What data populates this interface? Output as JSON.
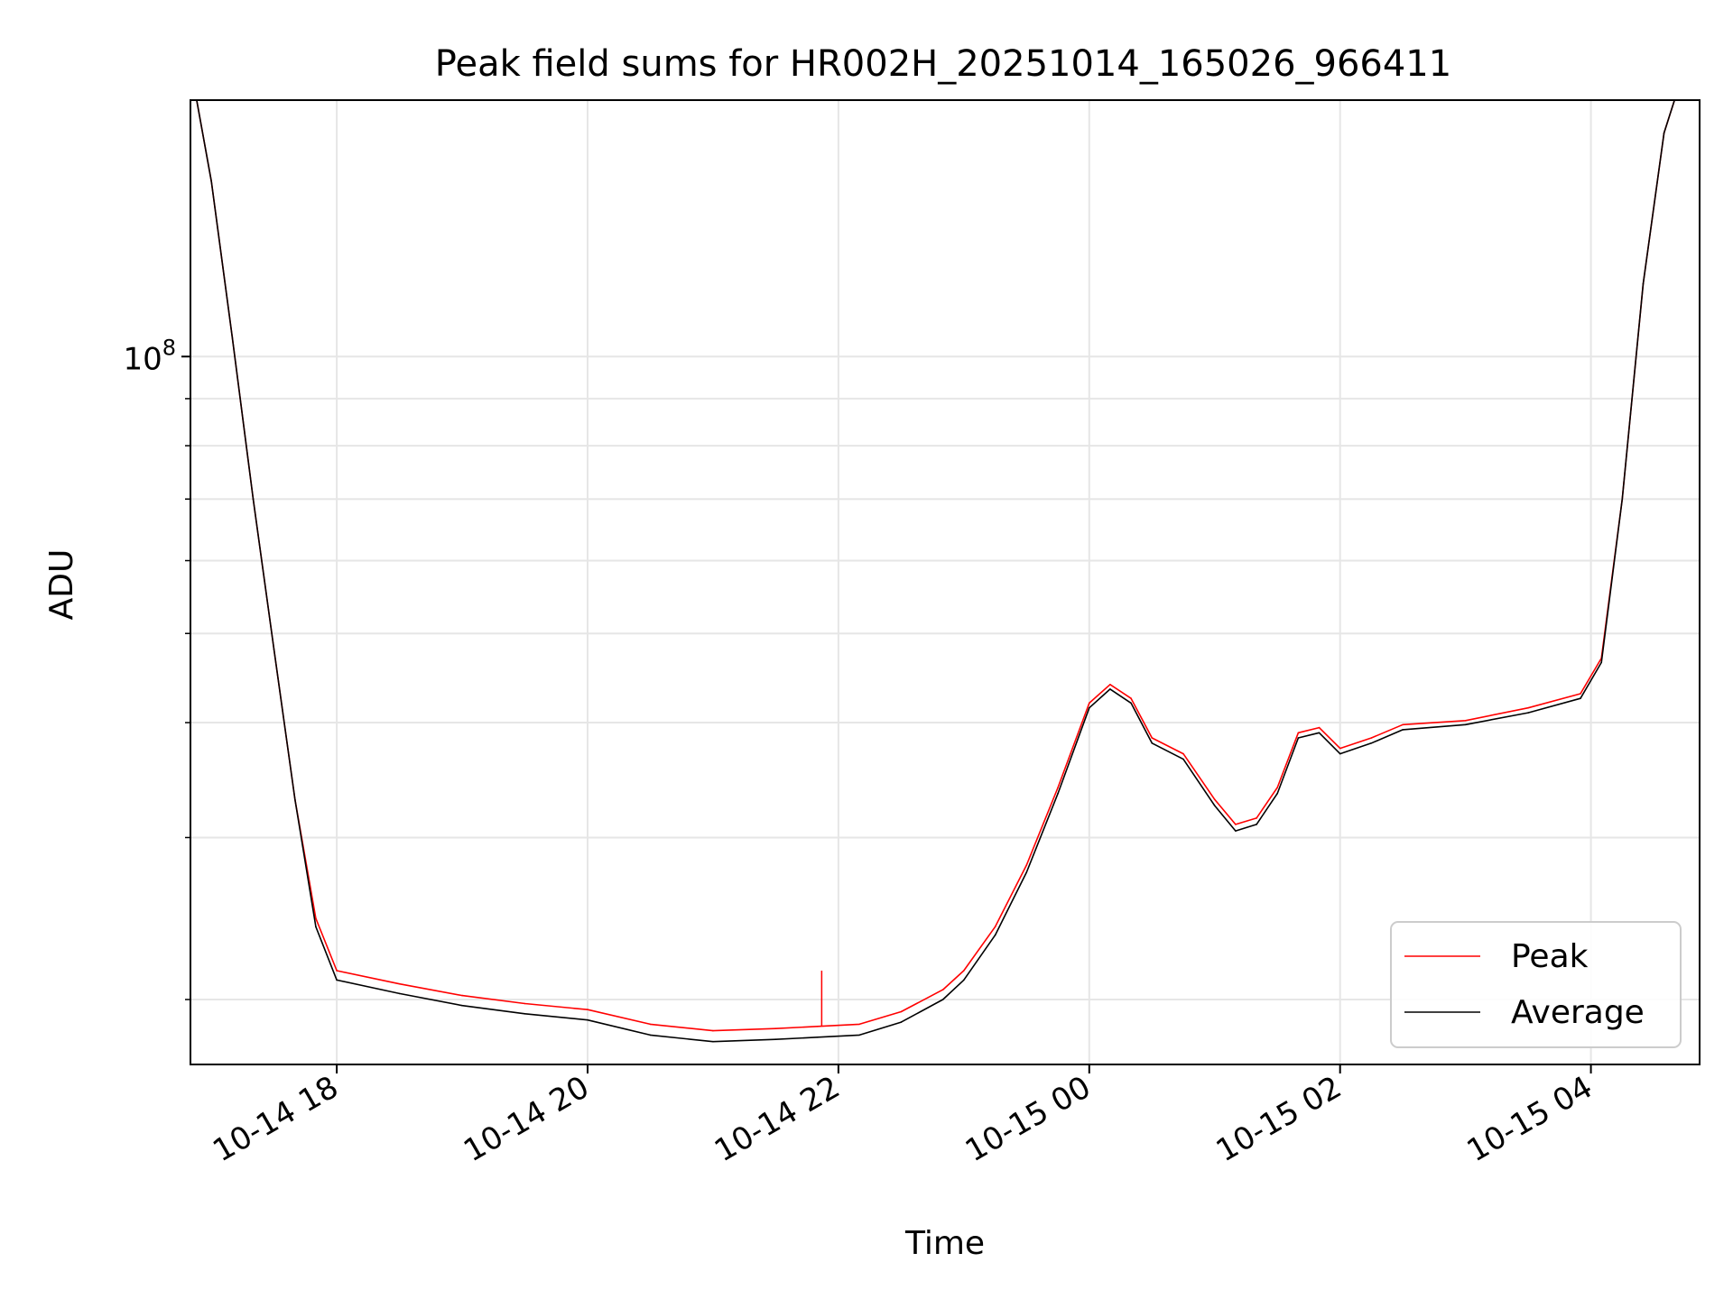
{
  "chart_data": {
    "type": "line",
    "title": "Peak field sums for HR002H_20251014_165026_966411",
    "xlabel": "Time",
    "ylabel": "ADU",
    "yscale": "log",
    "ylim": [
      17000000,
      190000000
    ],
    "xlim": [
      "2025-10-14 16:50",
      "2025-10-15 04:52"
    ],
    "x_ticks": [
      {
        "x": "2025-10-14 18:00",
        "label": "10-14 18"
      },
      {
        "x": "2025-10-14 20:00",
        "label": "10-14 20"
      },
      {
        "x": "2025-10-14 22:00",
        "label": "10-14 22"
      },
      {
        "x": "2025-10-15 00:00",
        "label": "10-15 00"
      },
      {
        "x": "2025-10-15 02:00",
        "label": "10-15 02"
      },
      {
        "x": "2025-10-15 04:00",
        "label": "10-15 04"
      }
    ],
    "y_ticks": [
      {
        "y": 100000000,
        "base": "10",
        "exp": "8"
      }
    ],
    "y_minor_ticks": [
      20000000,
      30000000,
      40000000,
      50000000,
      60000000,
      70000000,
      80000000,
      90000000,
      200000000
    ],
    "grid": true,
    "legend": {
      "position": "bottom-right",
      "entries": [
        "Peak",
        "Average"
      ]
    },
    "colors": {
      "peak": "#ff0000",
      "average": "#000000"
    },
    "series": [
      {
        "name": "Peak",
        "color": "#ff0000",
        "points": [
          [
            "2025-10-14 16:53",
            190000000
          ],
          [
            "2025-10-14 17:00",
            155000000
          ],
          [
            "2025-10-14 17:10",
            105000000
          ],
          [
            "2025-10-14 17:20",
            70000000
          ],
          [
            "2025-10-14 17:30",
            48000000
          ],
          [
            "2025-10-14 17:40",
            33000000
          ],
          [
            "2025-10-14 17:50",
            24500000
          ],
          [
            "2025-10-14 18:00",
            21500000
          ],
          [
            "2025-10-14 18:30",
            20800000
          ],
          [
            "2025-10-14 19:00",
            20200000
          ],
          [
            "2025-10-14 19:30",
            19800000
          ],
          [
            "2025-10-14 20:00",
            19500000
          ],
          [
            "2025-10-14 20:30",
            18800000
          ],
          [
            "2025-10-14 21:00",
            18500000
          ],
          [
            "2025-10-14 21:30",
            18600000
          ],
          [
            "2025-10-14 21:50",
            18700000
          ],
          [
            "2025-10-14 22:10",
            18800000
          ],
          [
            "2025-10-14 22:30",
            19400000
          ],
          [
            "2025-10-14 22:50",
            20500000
          ],
          [
            "2025-10-14 23:00",
            21500000
          ],
          [
            "2025-10-14 23:15",
            24000000
          ],
          [
            "2025-10-14 23:30",
            28000000
          ],
          [
            "2025-10-14 23:45",
            34000000
          ],
          [
            "2025-10-15 00:00",
            42000000
          ],
          [
            "2025-10-15 00:10",
            44000000
          ],
          [
            "2025-10-15 00:20",
            42500000
          ],
          [
            "2025-10-15 00:30",
            38500000
          ],
          [
            "2025-10-15 00:45",
            37000000
          ],
          [
            "2025-10-15 01:00",
            33000000
          ],
          [
            "2025-10-15 01:10",
            31000000
          ],
          [
            "2025-10-15 01:20",
            31500000
          ],
          [
            "2025-10-15 01:30",
            34000000
          ],
          [
            "2025-10-15 01:40",
            39000000
          ],
          [
            "2025-10-15 01:50",
            39500000
          ],
          [
            "2025-10-15 02:00",
            37500000
          ],
          [
            "2025-10-15 02:15",
            38500000
          ],
          [
            "2025-10-15 02:30",
            39800000
          ],
          [
            "2025-10-15 03:00",
            40200000
          ],
          [
            "2025-10-15 03:30",
            41500000
          ],
          [
            "2025-10-15 03:55",
            43000000
          ],
          [
            "2025-10-15 04:05",
            47000000
          ],
          [
            "2025-10-15 04:15",
            70000000
          ],
          [
            "2025-10-15 04:25",
            120000000
          ],
          [
            "2025-10-15 04:35",
            175000000
          ],
          [
            "2025-10-15 04:40",
            190000000
          ]
        ]
      },
      {
        "name": "Average",
        "color": "#000000",
        "points": [
          [
            "2025-10-14 16:53",
            190000000
          ],
          [
            "2025-10-14 17:00",
            155000000
          ],
          [
            "2025-10-14 17:10",
            105000000
          ],
          [
            "2025-10-14 17:20",
            70000000
          ],
          [
            "2025-10-14 17:30",
            48000000
          ],
          [
            "2025-10-14 17:40",
            33000000
          ],
          [
            "2025-10-14 17:50",
            24000000
          ],
          [
            "2025-10-14 18:00",
            21000000
          ],
          [
            "2025-10-14 18:30",
            20300000
          ],
          [
            "2025-10-14 19:00",
            19700000
          ],
          [
            "2025-10-14 19:30",
            19300000
          ],
          [
            "2025-10-14 20:00",
            19000000
          ],
          [
            "2025-10-14 20:30",
            18300000
          ],
          [
            "2025-10-14 21:00",
            18000000
          ],
          [
            "2025-10-14 21:30",
            18100000
          ],
          [
            "2025-10-14 21:50",
            18200000
          ],
          [
            "2025-10-14 22:10",
            18300000
          ],
          [
            "2025-10-14 22:30",
            18900000
          ],
          [
            "2025-10-14 22:50",
            20000000
          ],
          [
            "2025-10-14 23:00",
            21000000
          ],
          [
            "2025-10-14 23:15",
            23500000
          ],
          [
            "2025-10-14 23:30",
            27500000
          ],
          [
            "2025-10-14 23:45",
            33500000
          ],
          [
            "2025-10-15 00:00",
            41500000
          ],
          [
            "2025-10-15 00:10",
            43500000
          ],
          [
            "2025-10-15 00:20",
            42000000
          ],
          [
            "2025-10-15 00:30",
            38000000
          ],
          [
            "2025-10-15 00:45",
            36500000
          ],
          [
            "2025-10-15 01:00",
            32500000
          ],
          [
            "2025-10-15 01:10",
            30500000
          ],
          [
            "2025-10-15 01:20",
            31000000
          ],
          [
            "2025-10-15 01:30",
            33500000
          ],
          [
            "2025-10-15 01:40",
            38500000
          ],
          [
            "2025-10-15 01:50",
            39000000
          ],
          [
            "2025-10-15 02:00",
            37000000
          ],
          [
            "2025-10-15 02:15",
            38000000
          ],
          [
            "2025-10-15 02:30",
            39300000
          ],
          [
            "2025-10-15 03:00",
            39800000
          ],
          [
            "2025-10-15 03:30",
            41000000
          ],
          [
            "2025-10-15 03:55",
            42500000
          ],
          [
            "2025-10-15 04:05",
            46500000
          ],
          [
            "2025-10-15 04:15",
            70000000
          ],
          [
            "2025-10-15 04:25",
            120000000
          ],
          [
            "2025-10-15 04:35",
            175000000
          ],
          [
            "2025-10-15 04:40",
            190000000
          ]
        ]
      }
    ],
    "spikes": [
      {
        "series": "Peak",
        "x": "2025-10-14 21:52",
        "y": 21500000
      }
    ]
  }
}
